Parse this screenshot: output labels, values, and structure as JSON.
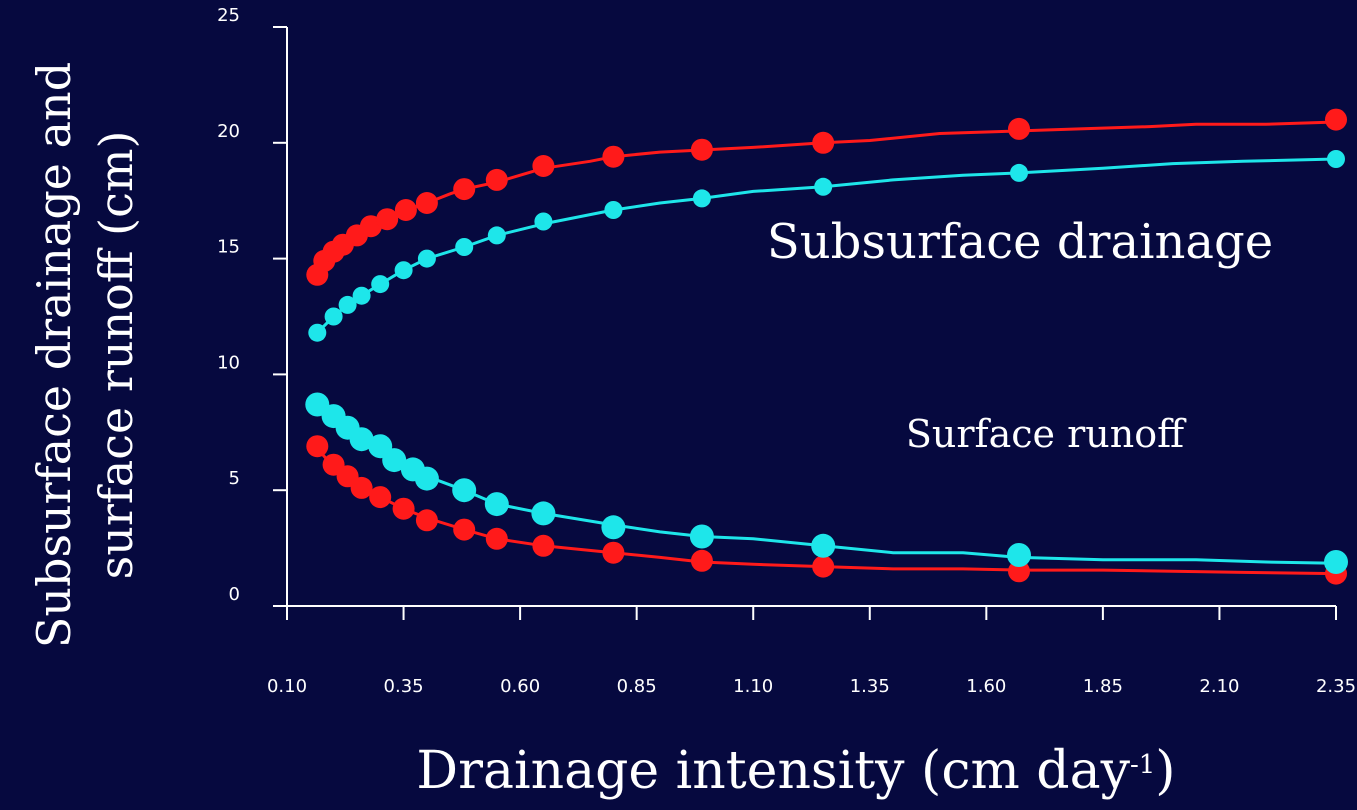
{
  "chart_data": {
    "type": "line",
    "xlabel": "Drainage intensity (cm day",
    "xlabel_superscript": "-1",
    "xlabel_suffix": ")",
    "ylabel_line1": "Subsurface drainage and",
    "ylabel_line2": "surface runoff (cm)",
    "annotations": {
      "subsurface": "Subsurface drainage",
      "runoff": "Surface runoff"
    },
    "xlim": [
      0.1,
      2.35
    ],
    "ylim": [
      0,
      25
    ],
    "xticks": [
      "0.10",
      "0.35",
      "0.60",
      "0.85",
      "1.10",
      "1.35",
      "1.60",
      "1.85",
      "2.10",
      "2.35"
    ],
    "yticks": [
      "0",
      "5",
      "10",
      "15",
      "20",
      "25"
    ],
    "grid": false,
    "colors": {
      "background": "#06093f",
      "axis": "#ffffff",
      "red": "#ff1a1a",
      "cyan": "#1ee6ea"
    },
    "series": [
      {
        "color": "red",
        "group": "subsurface",
        "line": [
          [
            0.165,
            14.3
          ],
          [
            0.18,
            14.9
          ],
          [
            0.2,
            15.3
          ],
          [
            0.22,
            15.6
          ],
          [
            0.25,
            16.0
          ],
          [
            0.28,
            16.4
          ],
          [
            0.315,
            16.7
          ],
          [
            0.355,
            17.1
          ],
          [
            0.4,
            17.4
          ],
          [
            0.45,
            17.8
          ],
          [
            0.48,
            18.0
          ],
          [
            0.55,
            18.3
          ],
          [
            0.65,
            18.9
          ],
          [
            0.75,
            19.2
          ],
          [
            0.8,
            19.4
          ],
          [
            0.9,
            19.6
          ],
          [
            1.0,
            19.7
          ],
          [
            1.1,
            19.8
          ],
          [
            1.25,
            20.0
          ],
          [
            1.35,
            20.1
          ],
          [
            1.5,
            20.4
          ],
          [
            1.65,
            20.5
          ],
          [
            1.8,
            20.6
          ],
          [
            1.95,
            20.7
          ],
          [
            2.05,
            20.8
          ],
          [
            2.2,
            20.8
          ],
          [
            2.35,
            20.9
          ]
        ],
        "points": [
          [
            0.165,
            14.3
          ],
          [
            0.18,
            14.9
          ],
          [
            0.2,
            15.3
          ],
          [
            0.22,
            15.6
          ],
          [
            0.25,
            16.0
          ],
          [
            0.28,
            16.4
          ],
          [
            0.315,
            16.7
          ],
          [
            0.355,
            17.1
          ],
          [
            0.4,
            17.4
          ],
          [
            0.48,
            18.0
          ],
          [
            0.55,
            18.4
          ],
          [
            0.65,
            19.0
          ],
          [
            0.8,
            19.4
          ],
          [
            0.99,
            19.7
          ],
          [
            1.25,
            20.0
          ],
          [
            1.67,
            20.6
          ],
          [
            2.35,
            21.0
          ]
        ],
        "marker_radius": 11
      },
      {
        "color": "cyan",
        "group": "subsurface",
        "line": [
          [
            0.165,
            11.8
          ],
          [
            0.2,
            12.5
          ],
          [
            0.23,
            13.0
          ],
          [
            0.26,
            13.4
          ],
          [
            0.3,
            13.9
          ],
          [
            0.35,
            14.5
          ],
          [
            0.4,
            15.0
          ],
          [
            0.48,
            15.5
          ],
          [
            0.55,
            16.0
          ],
          [
            0.65,
            16.5
          ],
          [
            0.8,
            17.1
          ],
          [
            0.9,
            17.4
          ],
          [
            0.99,
            17.6
          ],
          [
            1.1,
            17.9
          ],
          [
            1.25,
            18.1
          ],
          [
            1.4,
            18.4
          ],
          [
            1.55,
            18.6
          ],
          [
            1.67,
            18.7
          ],
          [
            1.85,
            18.9
          ],
          [
            2.0,
            19.1
          ],
          [
            2.15,
            19.2
          ],
          [
            2.35,
            19.3
          ]
        ],
        "points": [
          [
            0.165,
            11.8
          ],
          [
            0.2,
            12.5
          ],
          [
            0.23,
            13.0
          ],
          [
            0.26,
            13.4
          ],
          [
            0.3,
            13.9
          ],
          [
            0.35,
            14.5
          ],
          [
            0.4,
            15.0
          ],
          [
            0.48,
            15.5
          ],
          [
            0.55,
            16.0
          ],
          [
            0.65,
            16.6
          ],
          [
            0.8,
            17.1
          ],
          [
            0.99,
            17.6
          ],
          [
            1.25,
            18.1
          ],
          [
            1.67,
            18.7
          ],
          [
            2.35,
            19.3
          ]
        ],
        "marker_radius": 9
      },
      {
        "color": "red",
        "group": "runoff",
        "line": [
          [
            0.165,
            6.8
          ],
          [
            0.2,
            6.0
          ],
          [
            0.23,
            5.6
          ],
          [
            0.26,
            5.2
          ],
          [
            0.3,
            4.7
          ],
          [
            0.35,
            4.2
          ],
          [
            0.4,
            3.8
          ],
          [
            0.48,
            3.3
          ],
          [
            0.55,
            2.9
          ],
          [
            0.65,
            2.6
          ],
          [
            0.8,
            2.3
          ],
          [
            0.9,
            2.1
          ],
          [
            0.99,
            1.9
          ],
          [
            1.1,
            1.8
          ],
          [
            1.25,
            1.7
          ],
          [
            1.4,
            1.6
          ],
          [
            1.55,
            1.6
          ],
          [
            1.67,
            1.55
          ],
          [
            1.85,
            1.55
          ],
          [
            2.0,
            1.5
          ],
          [
            2.15,
            1.45
          ],
          [
            2.35,
            1.4
          ]
        ],
        "points": [
          [
            0.165,
            6.9
          ],
          [
            0.2,
            6.1
          ],
          [
            0.23,
            5.6
          ],
          [
            0.26,
            5.1
          ],
          [
            0.3,
            4.7
          ],
          [
            0.35,
            4.2
          ],
          [
            0.4,
            3.7
          ],
          [
            0.48,
            3.3
          ],
          [
            0.55,
            2.9
          ],
          [
            0.65,
            2.6
          ],
          [
            0.8,
            2.3
          ],
          [
            0.99,
            1.95
          ],
          [
            1.25,
            1.7
          ],
          [
            1.67,
            1.5
          ],
          [
            2.35,
            1.4
          ]
        ],
        "marker_radius": 11
      },
      {
        "color": "cyan",
        "group": "runoff",
        "line": [
          [
            0.165,
            8.6
          ],
          [
            0.2,
            8.0
          ],
          [
            0.23,
            7.6
          ],
          [
            0.26,
            7.3
          ],
          [
            0.3,
            6.8
          ],
          [
            0.35,
            6.2
          ],
          [
            0.4,
            5.6
          ],
          [
            0.48,
            5.0
          ],
          [
            0.55,
            4.4
          ],
          [
            0.65,
            4.0
          ],
          [
            0.8,
            3.5
          ],
          [
            0.9,
            3.2
          ],
          [
            0.99,
            3.0
          ],
          [
            1.1,
            2.9
          ],
          [
            1.25,
            2.6
          ],
          [
            1.4,
            2.3
          ],
          [
            1.55,
            2.3
          ],
          [
            1.67,
            2.1
          ],
          [
            1.85,
            2.0
          ],
          [
            2.05,
            2.0
          ],
          [
            2.2,
            1.9
          ],
          [
            2.35,
            1.85
          ]
        ],
        "points": [
          [
            0.165,
            8.7
          ],
          [
            0.2,
            8.2
          ],
          [
            0.23,
            7.7
          ],
          [
            0.26,
            7.2
          ],
          [
            0.3,
            6.9
          ],
          [
            0.33,
            6.3
          ],
          [
            0.37,
            5.9
          ],
          [
            0.4,
            5.5
          ],
          [
            0.48,
            5.0
          ],
          [
            0.55,
            4.4
          ],
          [
            0.65,
            4.0
          ],
          [
            0.8,
            3.4
          ],
          [
            0.99,
            3.0
          ],
          [
            1.25,
            2.6
          ],
          [
            1.67,
            2.2
          ],
          [
            2.35,
            1.9
          ]
        ],
        "marker_radius": 12
      }
    ]
  }
}
